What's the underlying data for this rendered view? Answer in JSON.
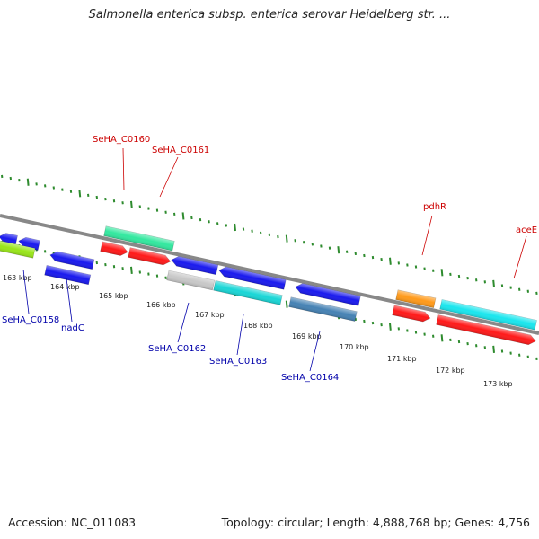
{
  "title": "Salmonella enterica subsp. enterica serovar Heidelberg str. ...",
  "footer": {
    "accession": "Accession: NC_011083",
    "stats": "Topology: circular; Length: 4,888,768 bp; Genes: 4,756"
  },
  "colors": {
    "backbone": "#888888",
    "tick": "#2e8b2e",
    "forward_label": "#cc0000",
    "reverse_label": "#0000aa"
  },
  "scale": {
    "ticks": [
      "163 kbp",
      "164 kbp",
      "165 kbp",
      "166 kbp",
      "167 kbp",
      "168 kbp",
      "169 kbp",
      "170 kbp",
      "171 kbp",
      "172 kbp",
      "173 kbp"
    ]
  },
  "genes": {
    "forward": [
      {
        "label": "SeHA_C0160",
        "color": "#33e89f"
      },
      {
        "label": "SeHA_C0161",
        "color": "#ff1a1a"
      },
      {
        "label": "pdhR",
        "color": "#ff9a1a"
      },
      {
        "label": "aceE",
        "color": "#1ae6ee"
      }
    ],
    "reverse": [
      {
        "label": "SeHA_C0158",
        "color": "#1a1aee"
      },
      {
        "label": "nadC",
        "color": "#1a1aee"
      },
      {
        "label": "SeHA_C0162",
        "color": "#1a1aee"
      },
      {
        "label": "SeHA_C0163",
        "color": "#1a1aee"
      },
      {
        "label": "SeHA_C0164",
        "color": "#1a1aee"
      }
    ]
  }
}
